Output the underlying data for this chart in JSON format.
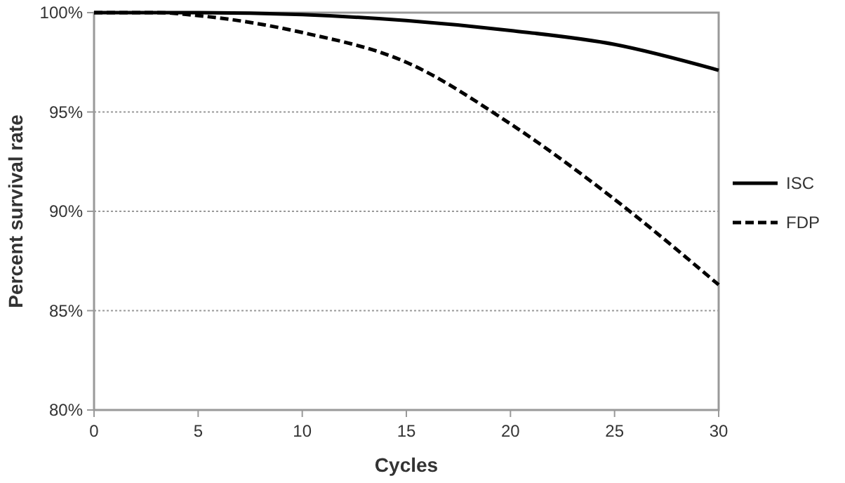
{
  "chart_data": {
    "type": "line",
    "xlabel": "Cycles",
    "ylabel": "Percent survival rate",
    "xlim": [
      0,
      30
    ],
    "xticks": [
      0,
      5,
      10,
      15,
      20,
      25,
      30
    ],
    "ylim": [
      80,
      100
    ],
    "yticks": [
      {
        "value": 80,
        "label": "80%"
      },
      {
        "value": 85,
        "label": "85%"
      },
      {
        "value": 90,
        "label": "90%"
      },
      {
        "value": 95,
        "label": "95%"
      },
      {
        "value": 100,
        "label": "100%"
      }
    ],
    "grid": "y",
    "legend": "right",
    "marker": "none",
    "series": [
      {
        "name": "ISC",
        "color": "#000000",
        "line_style": "solid",
        "x": [
          0,
          5,
          10,
          15,
          20,
          25,
          30
        ],
        "values": [
          100,
          100,
          99.9,
          99.6,
          99.1,
          98.4,
          97.1
        ]
      },
      {
        "name": "FDP",
        "color": "#000000",
        "line_style": "dashed",
        "x": [
          0,
          3,
          5,
          10,
          15,
          20,
          25,
          30
        ],
        "values": [
          100,
          100,
          99.85,
          99.0,
          97.5,
          94.4,
          90.6,
          86.3
        ]
      }
    ]
  }
}
